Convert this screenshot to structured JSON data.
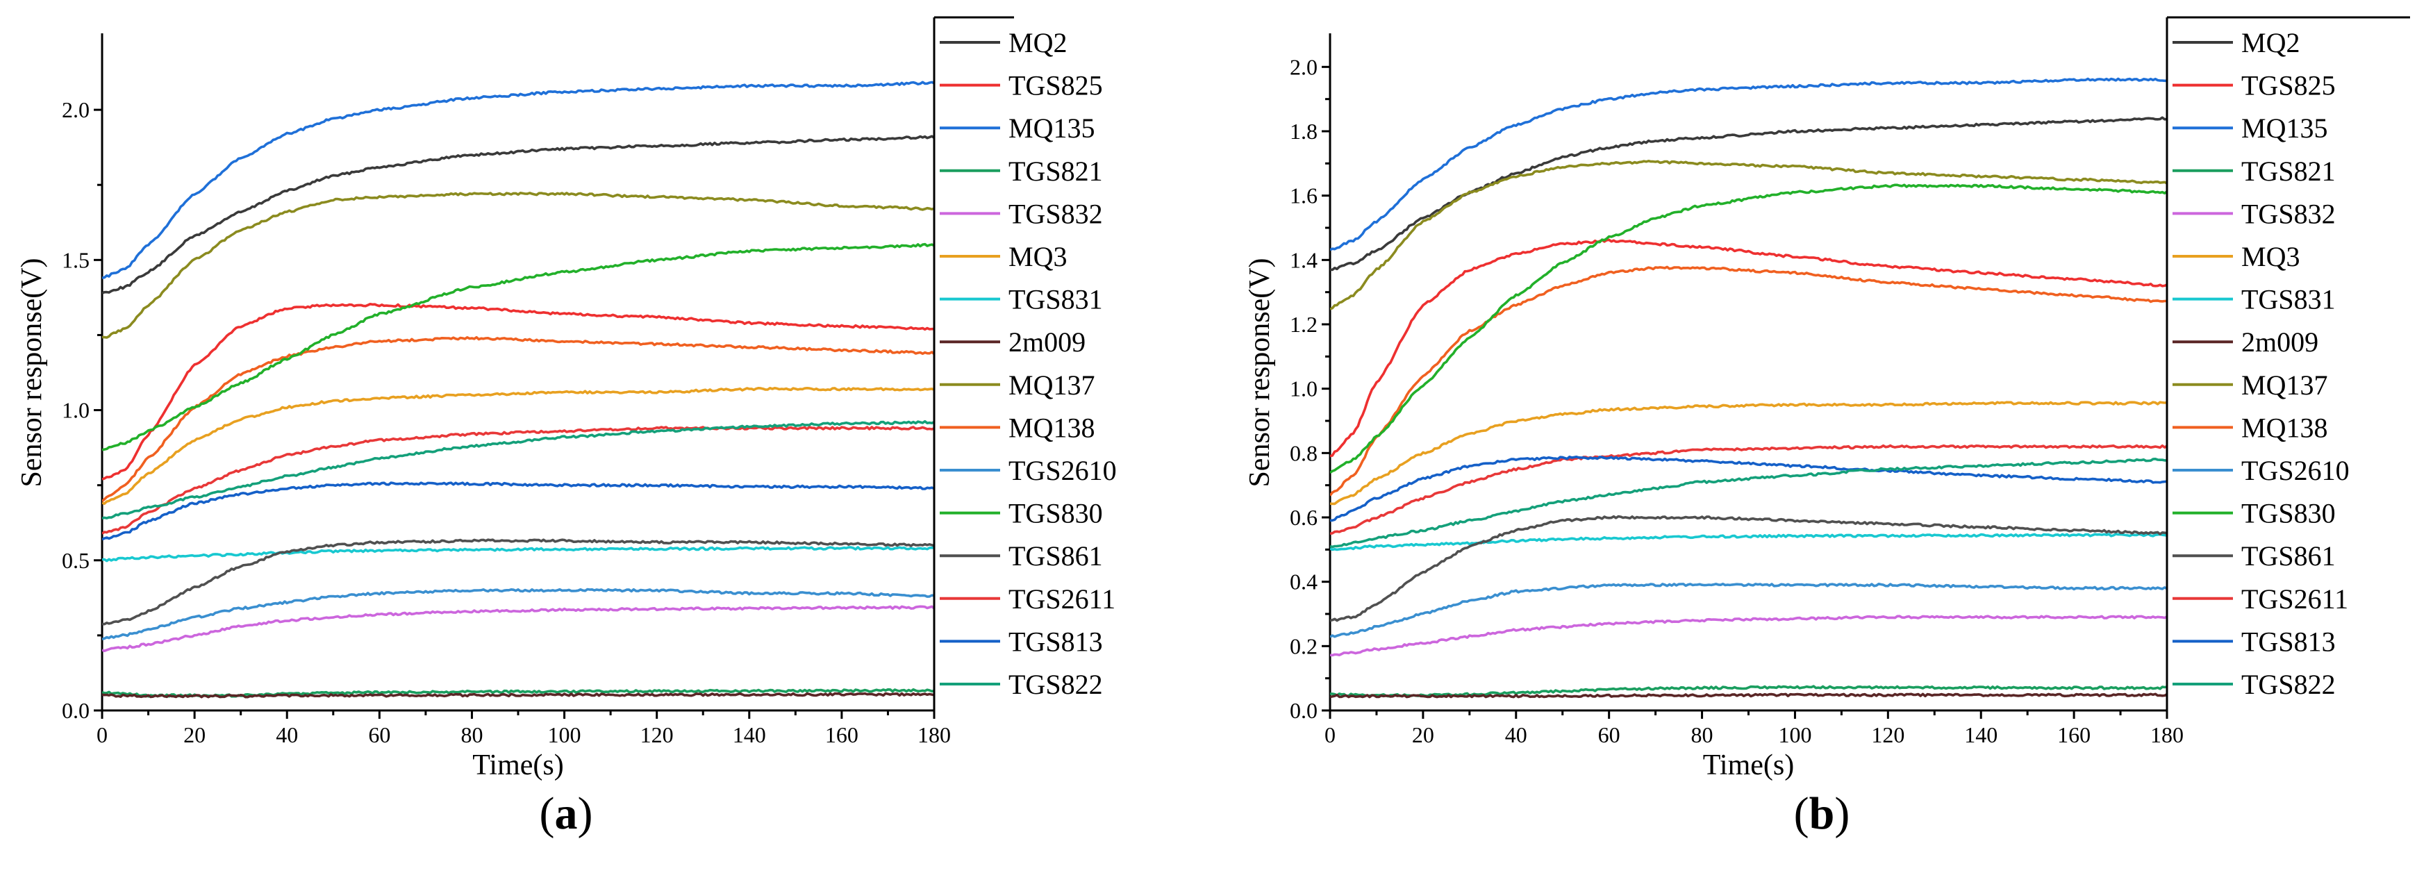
{
  "chart_data": [
    {
      "type": "line",
      "panel_label": "a",
      "xlabel": "Time(s)",
      "ylabel": "Sensor response(V)",
      "xlim": [
        0,
        180
      ],
      "ylim": [
        0,
        2.25
      ],
      "xticks": [
        0,
        20,
        40,
        60,
        80,
        100,
        120,
        140,
        160,
        180
      ],
      "yticks": [
        0.0,
        0.5,
        1.0,
        1.5,
        2.0
      ],
      "ytick_labels": [
        "0.0",
        "0.5",
        "1.0",
        "1.5",
        "2.0"
      ],
      "grid": false,
      "legend_placement": "right",
      "x": [
        0,
        5,
        10,
        20,
        30,
        40,
        50,
        60,
        80,
        100,
        120,
        140,
        160,
        180
      ],
      "series": [
        {
          "name": "MQ2",
          "color": "#3a3a3a",
          "values": [
            1.39,
            1.41,
            1.46,
            1.58,
            1.66,
            1.73,
            1.78,
            1.81,
            1.85,
            1.87,
            1.88,
            1.89,
            1.9,
            1.91
          ]
        },
        {
          "name": "TGS825",
          "color": "#ee3030",
          "values": [
            0.77,
            0.8,
            0.92,
            1.15,
            1.28,
            1.34,
            1.35,
            1.35,
            1.34,
            1.32,
            1.31,
            1.29,
            1.28,
            1.27
          ]
        },
        {
          "name": "MQ135",
          "color": "#1f70d8",
          "values": [
            1.44,
            1.47,
            1.55,
            1.72,
            1.84,
            1.92,
            1.97,
            2.0,
            2.04,
            2.06,
            2.07,
            2.08,
            2.08,
            2.09
          ]
        },
        {
          "name": "TGS821",
          "color": "#1a9e5f",
          "values": [
            0.06,
            0.055,
            0.05,
            0.05,
            0.05,
            0.055,
            0.058,
            0.06,
            0.062,
            0.063,
            0.064,
            0.065,
            0.066,
            0.067
          ]
        },
        {
          "name": "TGS832",
          "color": "#cc66dd",
          "values": [
            0.2,
            0.21,
            0.22,
            0.25,
            0.28,
            0.3,
            0.31,
            0.32,
            0.33,
            0.335,
            0.338,
            0.34,
            0.342,
            0.343
          ]
        },
        {
          "name": "MQ3",
          "color": "#e8a020",
          "values": [
            0.69,
            0.72,
            0.79,
            0.9,
            0.97,
            1.01,
            1.03,
            1.04,
            1.05,
            1.06,
            1.06,
            1.07,
            1.07,
            1.07
          ]
        },
        {
          "name": "TGS831",
          "color": "#18c8d0",
          "values": [
            0.5,
            0.505,
            0.51,
            0.515,
            0.52,
            0.525,
            0.53,
            0.532,
            0.535,
            0.537,
            0.538,
            0.539,
            0.54,
            0.54
          ]
        },
        {
          "name": "2m009",
          "color": "#5a2626",
          "values": [
            0.05,
            0.049,
            0.048,
            0.048,
            0.048,
            0.049,
            0.05,
            0.05,
            0.051,
            0.052,
            0.052,
            0.053,
            0.053,
            0.054
          ]
        },
        {
          "name": "MQ137",
          "color": "#8b8b1f",
          "values": [
            1.24,
            1.27,
            1.35,
            1.5,
            1.6,
            1.66,
            1.7,
            1.71,
            1.72,
            1.72,
            1.71,
            1.7,
            1.68,
            1.67
          ]
        },
        {
          "name": "MQ138",
          "color": "#f06020",
          "values": [
            0.7,
            0.75,
            0.84,
            1.01,
            1.12,
            1.18,
            1.21,
            1.23,
            1.24,
            1.23,
            1.22,
            1.21,
            1.2,
            1.19
          ]
        },
        {
          "name": "TGS2610",
          "color": "#3a8fd0",
          "values": [
            0.24,
            0.25,
            0.27,
            0.31,
            0.34,
            0.36,
            0.38,
            0.39,
            0.4,
            0.4,
            0.4,
            0.39,
            0.39,
            0.38
          ]
        },
        {
          "name": "TGS830",
          "color": "#22b02a",
          "values": [
            0.87,
            0.89,
            0.93,
            1.01,
            1.09,
            1.17,
            1.25,
            1.32,
            1.41,
            1.46,
            1.5,
            1.53,
            1.54,
            1.55
          ]
        },
        {
          "name": "TGS861",
          "color": "#505050",
          "values": [
            0.29,
            0.3,
            0.33,
            0.41,
            0.48,
            0.53,
            0.55,
            0.56,
            0.565,
            0.565,
            0.56,
            0.56,
            0.555,
            0.55
          ]
        },
        {
          "name": "TGS2611",
          "color": "#e83838",
          "values": [
            0.59,
            0.61,
            0.66,
            0.74,
            0.8,
            0.85,
            0.88,
            0.9,
            0.92,
            0.93,
            0.94,
            0.94,
            0.94,
            0.94
          ]
        },
        {
          "name": "TGS813",
          "color": "#1560c8",
          "values": [
            0.57,
            0.59,
            0.63,
            0.69,
            0.72,
            0.74,
            0.75,
            0.755,
            0.755,
            0.75,
            0.75,
            0.745,
            0.745,
            0.74
          ]
        },
        {
          "name": "TGS822",
          "color": "#14a07a",
          "values": [
            0.64,
            0.655,
            0.675,
            0.71,
            0.745,
            0.78,
            0.81,
            0.84,
            0.88,
            0.91,
            0.93,
            0.945,
            0.955,
            0.96
          ]
        }
      ]
    },
    {
      "type": "line",
      "panel_label": "b",
      "xlabel": "Time(s)",
      "ylabel": "Sensor response(V)",
      "xlim": [
        0,
        180
      ],
      "ylim": [
        0,
        2.1
      ],
      "xticks": [
        0,
        20,
        40,
        60,
        80,
        100,
        120,
        140,
        160,
        180
      ],
      "yticks": [
        0.0,
        0.2,
        0.4,
        0.6,
        0.8,
        1.0,
        1.2,
        1.4,
        1.6,
        1.8,
        2.0
      ],
      "ytick_labels": [
        "0.0",
        "0.2",
        "0.4",
        "0.6",
        "0.8",
        "1.0",
        "1.2",
        "1.4",
        "1.6",
        "1.8",
        "2.0"
      ],
      "grid": false,
      "legend_placement": "right",
      "x": [
        0,
        5,
        10,
        20,
        30,
        40,
        50,
        60,
        70,
        80,
        100,
        120,
        140,
        160,
        180
      ],
      "series": [
        {
          "name": "MQ2",
          "color": "#3a3a3a",
          "values": [
            1.37,
            1.39,
            1.43,
            1.53,
            1.61,
            1.67,
            1.72,
            1.75,
            1.77,
            1.78,
            1.8,
            1.81,
            1.82,
            1.83,
            1.84
          ]
        },
        {
          "name": "TGS825",
          "color": "#ee3030",
          "values": [
            0.79,
            0.86,
            1.02,
            1.26,
            1.37,
            1.42,
            1.45,
            1.46,
            1.45,
            1.44,
            1.41,
            1.38,
            1.36,
            1.34,
            1.32
          ]
        },
        {
          "name": "MQ135",
          "color": "#1f70d8",
          "values": [
            1.43,
            1.46,
            1.52,
            1.65,
            1.75,
            1.82,
            1.87,
            1.9,
            1.92,
            1.93,
            1.94,
            1.95,
            1.95,
            1.96,
            1.96
          ]
        },
        {
          "name": "TGS821",
          "color": "#1a9e5f",
          "values": [
            0.05,
            0.048,
            0.047,
            0.048,
            0.05,
            0.055,
            0.06,
            0.065,
            0.068,
            0.07,
            0.072,
            0.072,
            0.071,
            0.07,
            0.07
          ]
        },
        {
          "name": "TGS832",
          "color": "#cc66dd",
          "values": [
            0.17,
            0.18,
            0.19,
            0.21,
            0.23,
            0.25,
            0.26,
            0.27,
            0.275,
            0.28,
            0.285,
            0.29,
            0.29,
            0.29,
            0.29
          ]
        },
        {
          "name": "MQ3",
          "color": "#e8a020",
          "values": [
            0.64,
            0.67,
            0.72,
            0.8,
            0.86,
            0.9,
            0.92,
            0.935,
            0.94,
            0.945,
            0.95,
            0.95,
            0.955,
            0.955,
            0.955
          ]
        },
        {
          "name": "TGS831",
          "color": "#18c8d0",
          "values": [
            0.5,
            0.505,
            0.51,
            0.515,
            0.52,
            0.527,
            0.532,
            0.535,
            0.538,
            0.54,
            0.542,
            0.543,
            0.544,
            0.545,
            0.545
          ]
        },
        {
          "name": "2m009",
          "color": "#5a2626",
          "values": [
            0.045,
            0.045,
            0.045,
            0.045,
            0.045,
            0.045,
            0.046,
            0.046,
            0.047,
            0.047,
            0.048,
            0.048,
            0.048,
            0.048,
            0.048
          ]
        },
        {
          "name": "MQ137",
          "color": "#8b8b1f",
          "values": [
            1.25,
            1.29,
            1.37,
            1.52,
            1.61,
            1.66,
            1.69,
            1.7,
            1.705,
            1.7,
            1.69,
            1.67,
            1.66,
            1.65,
            1.64
          ]
        },
        {
          "name": "MQ138",
          "color": "#f06020",
          "values": [
            0.67,
            0.73,
            0.85,
            1.04,
            1.18,
            1.26,
            1.32,
            1.36,
            1.375,
            1.375,
            1.36,
            1.33,
            1.31,
            1.29,
            1.27
          ]
        },
        {
          "name": "TGS2610",
          "color": "#3a8fd0",
          "values": [
            0.23,
            0.24,
            0.26,
            0.3,
            0.34,
            0.37,
            0.38,
            0.39,
            0.39,
            0.39,
            0.39,
            0.39,
            0.385,
            0.38,
            0.38
          ]
        },
        {
          "name": "TGS830",
          "color": "#22b02a",
          "values": [
            0.74,
            0.78,
            0.85,
            1.01,
            1.16,
            1.29,
            1.39,
            1.47,
            1.53,
            1.57,
            1.61,
            1.63,
            1.63,
            1.62,
            1.61
          ]
        },
        {
          "name": "TGS861",
          "color": "#505050",
          "values": [
            0.28,
            0.29,
            0.33,
            0.43,
            0.51,
            0.56,
            0.59,
            0.6,
            0.6,
            0.6,
            0.59,
            0.58,
            0.57,
            0.56,
            0.55
          ]
        },
        {
          "name": "TGS2611",
          "color": "#e83838",
          "values": [
            0.55,
            0.57,
            0.6,
            0.66,
            0.71,
            0.75,
            0.78,
            0.79,
            0.8,
            0.81,
            0.815,
            0.82,
            0.82,
            0.82,
            0.82
          ]
        },
        {
          "name": "TGS813",
          "color": "#1560c8",
          "values": [
            0.59,
            0.62,
            0.66,
            0.72,
            0.76,
            0.78,
            0.785,
            0.785,
            0.78,
            0.775,
            0.76,
            0.745,
            0.73,
            0.72,
            0.71
          ]
        },
        {
          "name": "TGS822",
          "color": "#14a07a",
          "values": [
            0.51,
            0.52,
            0.535,
            0.56,
            0.59,
            0.62,
            0.65,
            0.67,
            0.69,
            0.71,
            0.73,
            0.75,
            0.76,
            0.77,
            0.78
          ]
        }
      ]
    }
  ]
}
